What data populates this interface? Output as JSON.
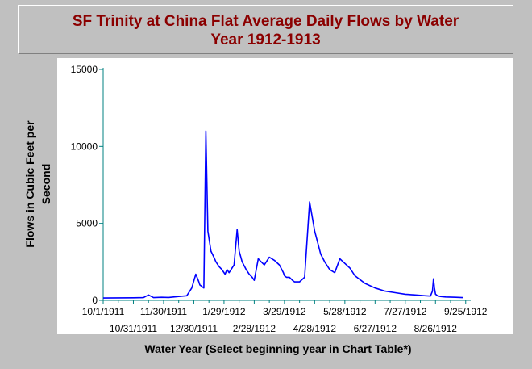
{
  "chart_data": {
    "type": "line",
    "title_line1": "SF Trinity at China Flat Average Daily Flows by Water",
    "title_line2": "Year 1912-1913",
    "xlabel": "Water Year (Select beginning year in Chart Table*)",
    "ylabel_line1": "Flows in Cubic Feet per",
    "ylabel_line2": "Second",
    "ylim": [
      0,
      15000
    ],
    "yticks": [
      "0",
      "5000",
      "10000",
      "15000"
    ],
    "xlim": [
      0,
      365
    ],
    "xticks_upper": [
      "10/1/1911",
      "11/30/1911",
      "1/29/1912",
      "3/29/1912",
      "5/28/1912",
      "7/27/1912",
      "9/25/1912"
    ],
    "xticks_lower": [
      "10/31/1911",
      "12/30/1911",
      "2/28/1912",
      "4/28/1912",
      "6/27/1912",
      "8/26/1912"
    ],
    "grid": false,
    "legend": "none",
    "line_color": "#0000ff",
    "series": [
      {
        "x": [
          0,
          15,
          30,
          40,
          45,
          50,
          58,
          65,
          75,
          83,
          88,
          92,
          95,
          96,
          98,
          100,
          102,
          104,
          107,
          110,
          112,
          115,
          118,
          120,
          121,
          123,
          125,
          130,
          133,
          135,
          138,
          142,
          145,
          148,
          150,
          154,
          157,
          160,
          165,
          170,
          175,
          179,
          180,
          182,
          185,
          188,
          190,
          195,
          200,
          205,
          210,
          214,
          216,
          220,
          225,
          230,
          235,
          240,
          245,
          250,
          260,
          270,
          280,
          290,
          300,
          310,
          320,
          325,
          327,
          328,
          329,
          330,
          332,
          335,
          340,
          350,
          357
        ],
        "y": [
          150,
          160,
          170,
          180,
          350,
          180,
          200,
          190,
          250,
          300,
          800,
          1700,
          1200,
          1000,
          900,
          800,
          11000,
          4500,
          3200,
          2800,
          2500,
          2200,
          2000,
          1800,
          1700,
          2000,
          1800,
          2300,
          4600,
          3200,
          2500,
          2000,
          1700,
          1500,
          1300,
          2700,
          2500,
          2300,
          2800,
          2600,
          2300,
          1800,
          1600,
          1500,
          1500,
          1300,
          1200,
          1200,
          1500,
          6400,
          4500,
          3500,
          3000,
          2500,
          2000,
          1800,
          2700,
          2400,
          2100,
          1600,
          1100,
          800,
          600,
          500,
          400,
          350,
          300,
          280,
          600,
          1400,
          800,
          400,
          300,
          250,
          220,
          200,
          180
        ]
      }
    ]
  }
}
